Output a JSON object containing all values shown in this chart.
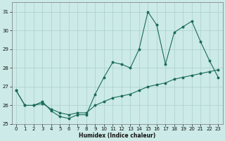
{
  "xlabel": "Humidex (Indice chaleur)",
  "background_color": "#cceae7",
  "grid_color": "#aacfcc",
  "line_color": "#1a6b5a",
  "x": [
    0,
    1,
    2,
    3,
    4,
    5,
    6,
    7,
    8,
    9,
    10,
    11,
    12,
    13,
    14,
    15,
    16,
    17,
    18,
    19,
    20,
    21,
    22,
    23
  ],
  "y_main": [
    26.8,
    26.0,
    26.0,
    26.2,
    25.7,
    25.4,
    25.3,
    25.5,
    25.5,
    26.6,
    27.5,
    28.3,
    28.2,
    28.0,
    29.0,
    31.0,
    30.3,
    28.2,
    29.9,
    30.2,
    30.5,
    29.4,
    28.4,
    27.5
  ],
  "y_smooth": [
    26.8,
    26.0,
    26.0,
    26.1,
    25.8,
    25.6,
    25.5,
    25.6,
    25.6,
    26.0,
    26.2,
    26.4,
    26.5,
    26.6,
    26.8,
    27.0,
    27.1,
    27.2,
    27.4,
    27.5,
    27.6,
    27.7,
    27.8,
    27.9
  ],
  "ylim": [
    25.0,
    31.5
  ],
  "yticks": [
    25,
    26,
    27,
    28,
    29,
    30,
    31
  ],
  "xlim": [
    -0.5,
    23.5
  ],
  "xticks": [
    0,
    1,
    2,
    3,
    4,
    5,
    6,
    7,
    8,
    9,
    10,
    11,
    12,
    13,
    14,
    15,
    16,
    17,
    18,
    19,
    20,
    21,
    22,
    23
  ],
  "xlabel_fontsize": 5.5,
  "tick_fontsize": 5.0,
  "linewidth": 0.8,
  "markersize": 1.8
}
